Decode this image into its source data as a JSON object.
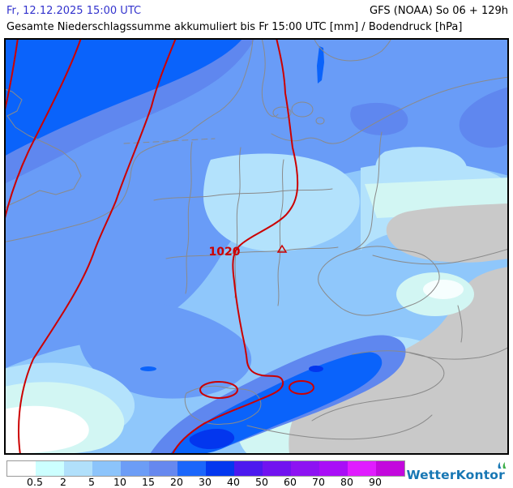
{
  "header": {
    "datetime": "Fr, 12.12.2025 15:00 UTC",
    "model_run": "GFS (NOAA) So 06 + 129h",
    "title": "Gesamte Niederschlagssumme akkumuliert bis Fr 15:00 UTC [mm] / Bodendruck [hPa]"
  },
  "map": {
    "isobar_label": "1020",
    "isobar_color": "#cc0000",
    "border_color": "#8a8a8a",
    "dry_area_color": "#c9c9c9"
  },
  "legend": {
    "boundary_labels": [
      "0.5",
      "2",
      "5",
      "10",
      "15",
      "20",
      "30",
      "40",
      "50",
      "60",
      "70",
      "80",
      "90"
    ],
    "colors": [
      "#ffffff",
      "#ccffff",
      "#b1e0fb",
      "#8cc4fb",
      "#6c9df6",
      "#6688ef",
      "#1b66fb",
      "#0437ef",
      "#4c19ef",
      "#7113f0",
      "#8d13f2",
      "#a90ef7",
      "#e01cff",
      "#c308dd"
    ]
  },
  "branding": {
    "logo_text": "WetterKontor"
  }
}
